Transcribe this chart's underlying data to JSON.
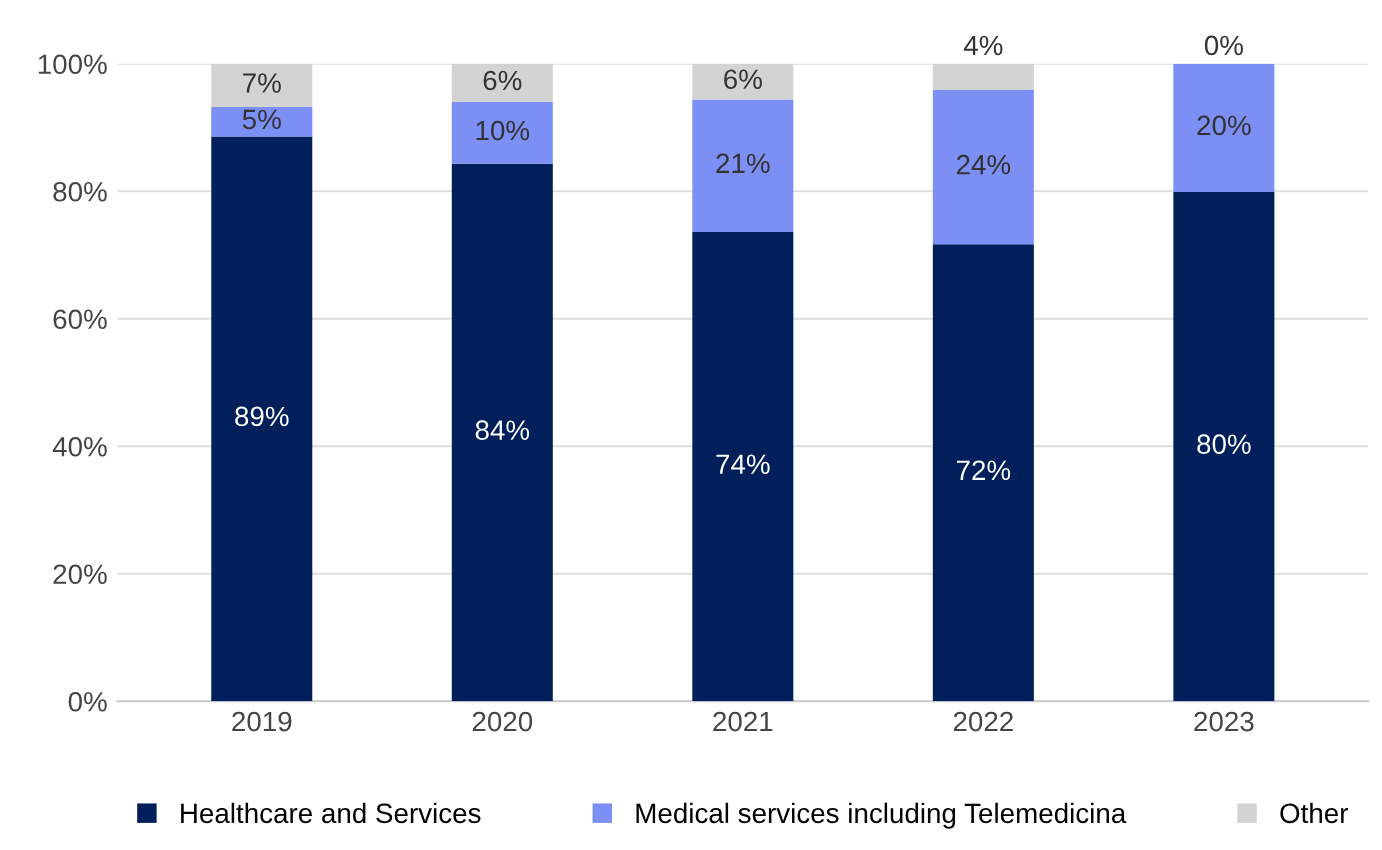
{
  "chart_data": {
    "type": "bar",
    "stacked": true,
    "categories": [
      "2019",
      "2020",
      "2021",
      "2022",
      "2023"
    ],
    "series": [
      {
        "name": "Healthcare and Services",
        "color": "#001f5b",
        "values": [
          88.6,
          84.3,
          73.6,
          71.7,
          79.9
        ],
        "value_labels": [
          "89%",
          "84%",
          "74%",
          "72%",
          "80%"
        ]
      },
      {
        "name": "Medical services including Telemedicina",
        "color": "#7b8ff5",
        "values": [
          4.6,
          9.7,
          20.8,
          24.2,
          20.1
        ],
        "value_labels": [
          "5%",
          "10%",
          "21%",
          "24%",
          "20%"
        ]
      },
      {
        "name": "Other",
        "color": "#d3d3d3",
        "values": [
          6.8,
          6.0,
          5.6,
          4.1,
          0
        ],
        "value_labels": [
          "7%",
          "6%",
          "6%",
          "4%",
          "0%"
        ]
      }
    ],
    "ylim": [
      0,
      100
    ],
    "yticks": [
      {
        "value": 0,
        "label": "0%"
      },
      {
        "value": 20,
        "label": "20%"
      },
      {
        "value": 40,
        "label": "40%"
      },
      {
        "value": 60,
        "label": "60%"
      },
      {
        "value": 80,
        "label": "80%"
      },
      {
        "value": 100,
        "label": "100%"
      }
    ],
    "grid": "y",
    "legend": "bottom"
  }
}
